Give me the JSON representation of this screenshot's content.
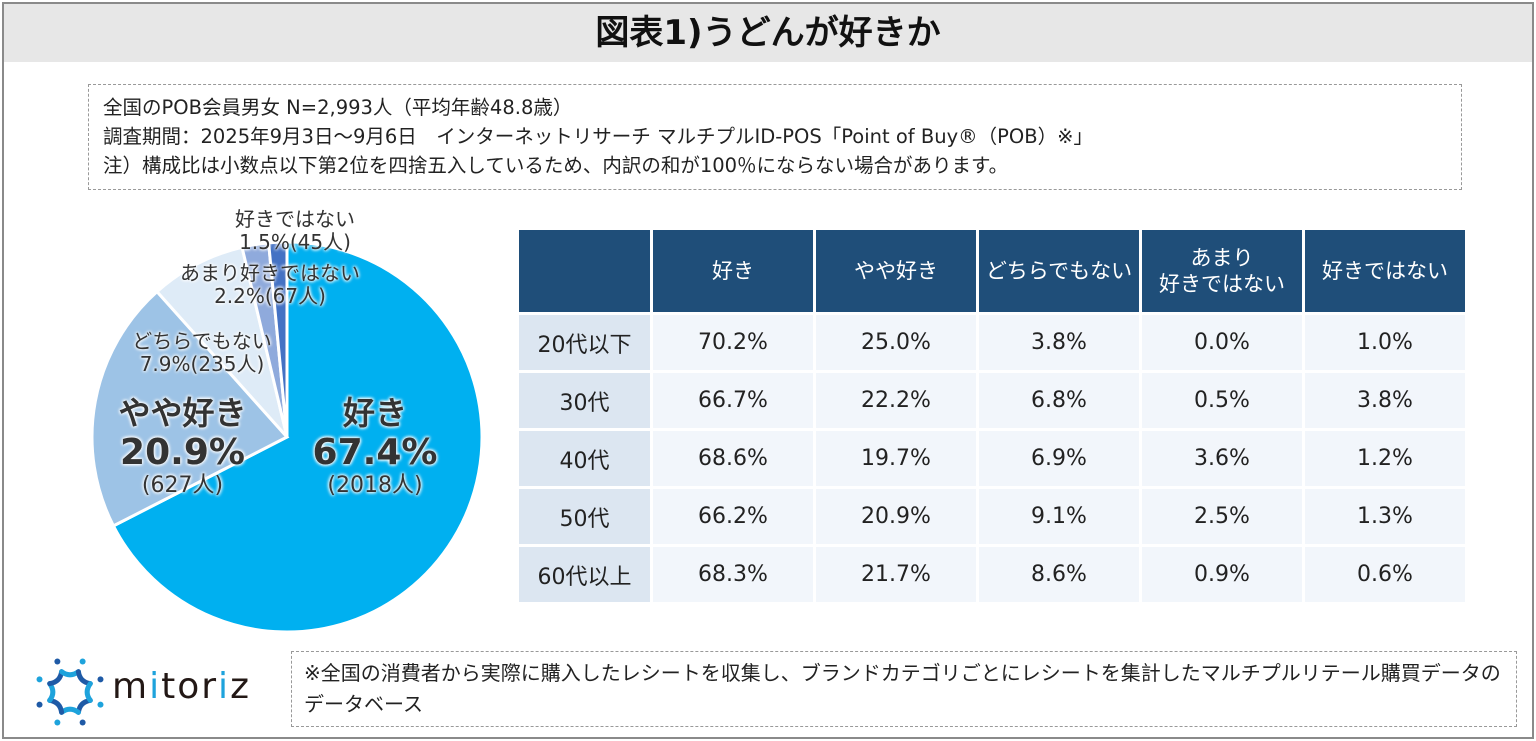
{
  "title": "図表1)うどんが好きか",
  "notes": [
    "全国のPOB会員男女 N=2,993人（平均年齢48.8歳）",
    "調査期間：2025年9月3日～9月6日　インターネットリサーチ マルチプルID-POS「Point of Buy®（POB）※」",
    "注）構成比は小数点以下第2位を四捨五入しているため、内訳の和が100％にならない場合があります。"
  ],
  "chart_data": [
    {
      "type": "pie",
      "start": "12 o'clock",
      "direction": "clockwise",
      "slices": [
        {
          "label": "好き",
          "value": 67.4,
          "pct": "67.4%",
          "count": "(2018人)",
          "color": "#00b0f0"
        },
        {
          "label": "やや好き",
          "value": 20.9,
          "pct": "20.9%",
          "count": "(627人)",
          "color": "#9dc3e6"
        },
        {
          "label": "どちらでもない",
          "value": 7.9,
          "pct": "7.9%(235人)",
          "color": "#deebf7"
        },
        {
          "label": "あまり好きではない",
          "value": 2.2,
          "pct": "2.2%(67人)",
          "color": "#8faadc"
        },
        {
          "label": "好きではない",
          "value": 1.5,
          "pct": "1.5%(45人)",
          "color": "#4472c4"
        }
      ]
    },
    {
      "type": "table",
      "columns": [
        "好き",
        "やや好き",
        "どちらでもない",
        "あまり\n好きではない",
        "好きではない"
      ],
      "rows": [
        {
          "label": "20代以下",
          "values": [
            "70.2%",
            "25.0%",
            "3.8%",
            "0.0%",
            "1.0%"
          ]
        },
        {
          "label": "30代",
          "values": [
            "66.7%",
            "22.2%",
            "6.8%",
            "0.5%",
            "3.8%"
          ]
        },
        {
          "label": "40代",
          "values": [
            "68.6%",
            "19.7%",
            "6.9%",
            "3.6%",
            "1.2%"
          ]
        },
        {
          "label": "50代",
          "values": [
            "66.2%",
            "20.9%",
            "9.1%",
            "2.5%",
            "1.3%"
          ]
        },
        {
          "label": "60代以上",
          "values": [
            "68.3%",
            "21.7%",
            "8.6%",
            "0.9%",
            "0.6%"
          ]
        }
      ]
    }
  ],
  "footnote": "※全国の消費者から実際に購入したレシートを収集し、ブランドカテゴリごとにレシートを集計したマルチプルリテール購買データのデータベース",
  "logo": {
    "text": "mitoriz",
    "colors": [
      "#1ea3dc",
      "#1f5aa6"
    ]
  }
}
